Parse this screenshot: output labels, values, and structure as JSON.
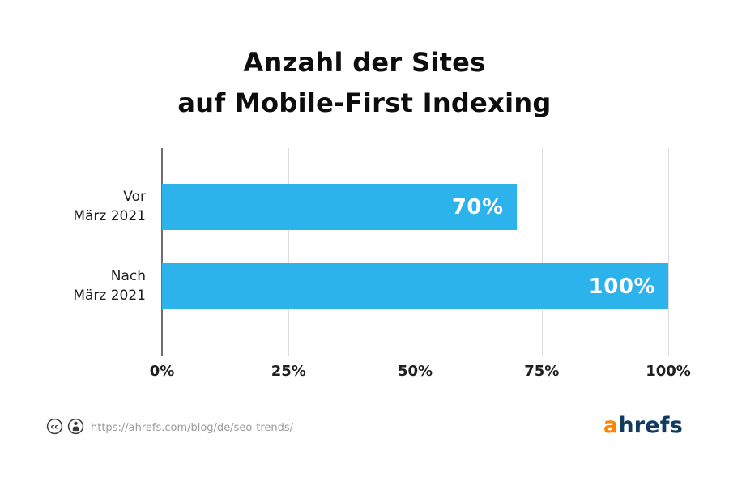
{
  "title": {
    "line1": "Anzahl der Sites",
    "line2": "auf Mobile-First Indexing"
  },
  "chart_data": {
    "type": "bar",
    "orientation": "horizontal",
    "title": "Anzahl der Sites auf Mobile-First Indexing",
    "categories": [
      "Vor März 2021",
      "Nach März 2021"
    ],
    "category_lines": [
      [
        "Vor",
        "März 2021"
      ],
      [
        "Nach",
        "März 2021"
      ]
    ],
    "values": [
      70,
      100
    ],
    "value_labels": [
      "70%",
      "100%"
    ],
    "xticks": [
      0,
      25,
      50,
      75,
      100
    ],
    "xtick_labels": [
      "0%",
      "25%",
      "50%",
      "75%",
      "100%"
    ],
    "xlim": [
      0,
      100
    ],
    "grid": "vertical",
    "legend": "none",
    "bar_color": "#2cb3ec",
    "value_label_color": "#ffffff"
  },
  "footer": {
    "license_icons": [
      "creative-commons-icon",
      "attribution-person-icon"
    ],
    "url": "https://ahrefs.com/blog/de/seo-trends/",
    "logo": {
      "prefix": "a",
      "rest": "hrefs",
      "prefix_color": "#ff8402",
      "rest_color": "#113a60"
    }
  }
}
